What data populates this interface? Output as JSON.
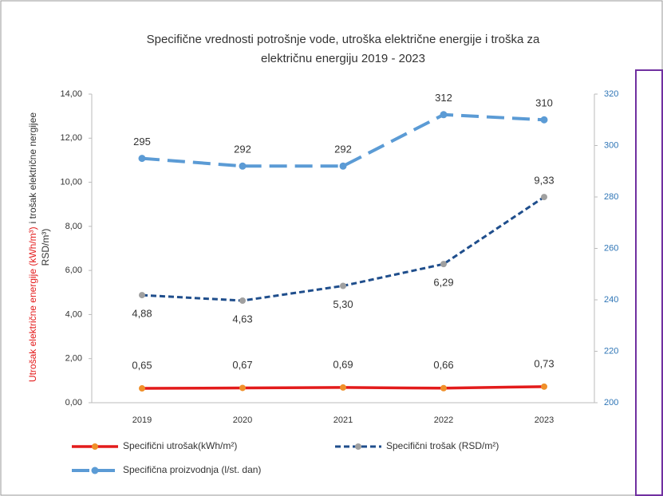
{
  "chart_data": {
    "type": "line",
    "title": [
      "Specifične vrednosti potrošnje vode, utroška električne energije i troška za",
      "električnu energiju 2019 - 2023"
    ],
    "ylabel": [
      "Utrošak električne energije (kWh/m³)",
      "i trošak električne nergijee",
      "RSD/m³)"
    ],
    "categories": [
      "2019",
      "2020",
      "2021",
      "2022",
      "2023"
    ],
    "ylim": [
      0,
      14
    ],
    "yticks": [
      {
        "value": 0,
        "label": "0,00"
      },
      {
        "value": 2,
        "label": "2,00"
      },
      {
        "value": 4,
        "label": "4,00"
      },
      {
        "value": 6,
        "label": "6,00"
      },
      {
        "value": 8,
        "label": "8,00"
      },
      {
        "value": 10,
        "label": "10,00"
      },
      {
        "value": 12,
        "label": "12,00"
      },
      {
        "value": 14,
        "label": "14,00"
      }
    ],
    "y2lim": [
      200,
      320
    ],
    "y2ticks": [
      200,
      220,
      240,
      260,
      280,
      300,
      320
    ],
    "series": [
      {
        "name": "Specifični utrošak(kWh/m²)",
        "color": "#e31b1b",
        "marker_color": "#f0902a",
        "values": [
          0.65,
          0.67,
          0.69,
          0.66,
          0.73
        ],
        "value_labels": [
          "0,65",
          "0,67",
          "0,69",
          "0,66",
          "0,73"
        ]
      },
      {
        "name": "Specifični trošak (RSD/m²)",
        "color": "#1f4e8c",
        "marker_color": "#a0a0a0",
        "values": [
          4.88,
          4.63,
          5.3,
          6.29,
          9.33
        ],
        "value_labels": [
          "4,88",
          "4,63",
          "5,30",
          "6,29",
          "9,33"
        ]
      },
      {
        "name": "Specifična proizvodnja (l/st. dan)",
        "color": "#5b9bd5",
        "marker_color": "#5b9bd5",
        "axis": "y2",
        "values": [
          295,
          292,
          292,
          312,
          310
        ]
      }
    ]
  }
}
